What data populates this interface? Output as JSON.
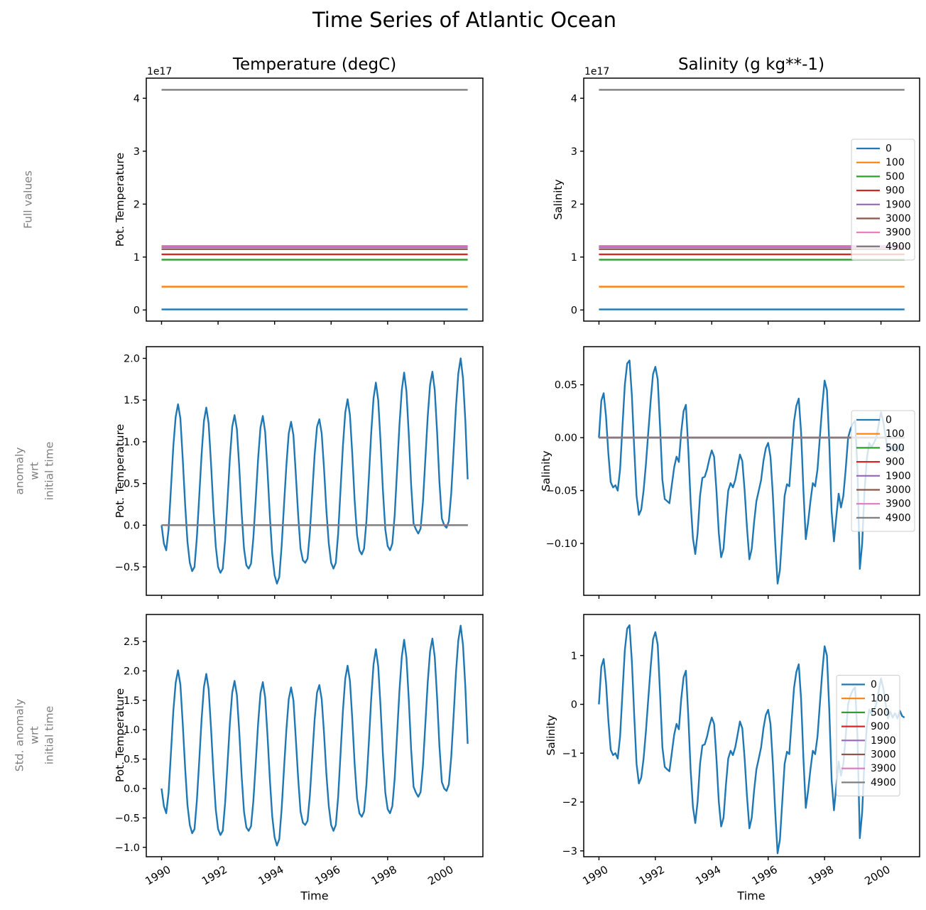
{
  "figure": {
    "suptitle": "Time Series of Atlantic Ocean",
    "col_titles": [
      "Temperature (degC)",
      "Salinity (g kg**-1)"
    ],
    "row_labels": [
      "Full values",
      "anomaly\nwrt\ninitial time",
      "Std. anomaly\nwrt\ninitial time"
    ],
    "row_label_color": "#7f7f7f",
    "legend": {
      "labels": [
        "0",
        "100",
        "500",
        "900",
        "1900",
        "3000",
        "3900",
        "4900"
      ],
      "colors": [
        "#1f77b4",
        "#ff7f0e",
        "#2ca02c",
        "#d62728",
        "#9467bd",
        "#8c564b",
        "#e377c2",
        "#7f7f7f"
      ],
      "position": "center right"
    }
  },
  "chart_data": [
    {
      "id": "temperature-full-values",
      "type": "line",
      "title": "Temperature (degC)",
      "ylabel": "Pot. Temperature",
      "offset_text": "1e17",
      "x": {
        "start": 1990.0,
        "step": 0.0833333,
        "n": 131
      },
      "xlim": [
        1989.46,
        2001.37
      ],
      "xticks": [
        1990,
        1992,
        1994,
        1996,
        1998,
        2000
      ],
      "xtick_labels": false,
      "ylim": [
        -0.21,
        4.38
      ],
      "yticks": [
        0,
        1,
        2,
        3,
        4
      ],
      "ytick_decimals": 0,
      "legend": false,
      "grid": false,
      "series": [
        {
          "name": "0",
          "color": "#1f77b4",
          "const": 0.01
        },
        {
          "name": "100",
          "color": "#ff7f0e",
          "const": 0.44
        },
        {
          "name": "500",
          "color": "#2ca02c",
          "const": 0.95
        },
        {
          "name": "900",
          "color": "#d62728",
          "const": 1.05
        },
        {
          "name": "1900",
          "color": "#9467bd",
          "const": 1.19
        },
        {
          "name": "3000",
          "color": "#8c564b",
          "const": 1.15
        },
        {
          "name": "3900",
          "color": "#e377c2",
          "const": 1.21
        },
        {
          "name": "4900",
          "color": "#7f7f7f",
          "const": 4.16
        }
      ]
    },
    {
      "id": "salinity-full-values",
      "type": "line",
      "title": "Salinity (g kg**-1)",
      "ylabel": "Salinity",
      "offset_text": "1e17",
      "x": {
        "start": 1990.0,
        "step": 0.0833333,
        "n": 131
      },
      "xlim": [
        1989.46,
        2001.37
      ],
      "xticks": [
        1990,
        1992,
        1994,
        1996,
        1998,
        2000
      ],
      "xtick_labels": false,
      "ylim": [
        -0.21,
        4.38
      ],
      "yticks": [
        0,
        1,
        2,
        3,
        4
      ],
      "ytick_decimals": 0,
      "legend": true,
      "legend_dx": 7,
      "grid": false,
      "series": [
        {
          "name": "0",
          "color": "#1f77b4",
          "const": 0.01
        },
        {
          "name": "100",
          "color": "#ff7f0e",
          "const": 0.44
        },
        {
          "name": "500",
          "color": "#2ca02c",
          "const": 0.95
        },
        {
          "name": "900",
          "color": "#d62728",
          "const": 1.05
        },
        {
          "name": "1900",
          "color": "#9467bd",
          "const": 1.19
        },
        {
          "name": "3000",
          "color": "#8c564b",
          "const": 1.15
        },
        {
          "name": "3900",
          "color": "#e377c2",
          "const": 1.21
        },
        {
          "name": "4900",
          "color": "#7f7f7f",
          "const": 4.16
        }
      ]
    },
    {
      "id": "temperature-anomaly",
      "type": "line",
      "ylabel": "Pot. Temperature",
      "x": {
        "start": 1990.0,
        "step": 0.0833333,
        "n": 131
      },
      "xlim": [
        1989.46,
        2001.37
      ],
      "xticks": [
        1990,
        1992,
        1994,
        1996,
        1998,
        2000
      ],
      "xtick_labels": false,
      "ylim": [
        -0.84,
        2.14
      ],
      "yticks": [
        -0.5,
        0.0,
        0.5,
        1.0,
        1.5,
        2.0
      ],
      "ytick_decimals": 1,
      "legend": false,
      "grid": false,
      "series": [
        {
          "name": "0",
          "color": "#1f77b4",
          "values": [
            0.0,
            -0.22,
            -0.3,
            -0.05,
            0.45,
            0.95,
            1.3,
            1.45,
            1.28,
            0.8,
            0.25,
            -0.2,
            -0.45,
            -0.55,
            -0.5,
            -0.15,
            0.35,
            0.85,
            1.25,
            1.41,
            1.22,
            0.75,
            0.2,
            -0.25,
            -0.5,
            -0.57,
            -0.52,
            -0.18,
            0.3,
            0.8,
            1.18,
            1.32,
            1.15,
            0.7,
            0.15,
            -0.28,
            -0.48,
            -0.52,
            -0.46,
            -0.15,
            0.32,
            0.8,
            1.17,
            1.31,
            1.12,
            0.65,
            0.1,
            -0.35,
            -0.6,
            -0.7,
            -0.62,
            -0.25,
            0.25,
            0.72,
            1.1,
            1.24,
            1.08,
            0.62,
            0.12,
            -0.28,
            -0.42,
            -0.45,
            -0.4,
            -0.08,
            0.38,
            0.85,
            1.18,
            1.27,
            1.1,
            0.68,
            0.18,
            -0.22,
            -0.45,
            -0.52,
            -0.45,
            -0.1,
            0.42,
            0.95,
            1.35,
            1.51,
            1.32,
            0.85,
            0.3,
            -0.12,
            -0.3,
            -0.35,
            -0.28,
            0.05,
            0.55,
            1.1,
            1.52,
            1.71,
            1.5,
            1.0,
            0.42,
            -0.05,
            -0.25,
            -0.3,
            -0.22,
            0.12,
            0.65,
            1.2,
            1.62,
            1.83,
            1.6,
            1.08,
            0.48,
            0.02,
            -0.05,
            -0.1,
            -0.04,
            0.28,
            0.78,
            1.3,
            1.68,
            1.84,
            1.62,
            1.12,
            0.52,
            0.08,
            0.0,
            -0.03,
            0.05,
            0.38,
            0.88,
            1.42,
            1.82,
            2.0,
            1.76,
            1.25,
            0.55
          ]
        },
        {
          "name": "100",
          "color": "#ff7f0e",
          "const": 0.0
        },
        {
          "name": "500",
          "color": "#2ca02c",
          "const": 0.0
        },
        {
          "name": "900",
          "color": "#d62728",
          "const": 0.0
        },
        {
          "name": "1900",
          "color": "#9467bd",
          "const": 0.0
        },
        {
          "name": "3000",
          "color": "#8c564b",
          "const": 0.0
        },
        {
          "name": "3900",
          "color": "#e377c2",
          "const": 0.0
        },
        {
          "name": "4900",
          "color": "#7f7f7f",
          "const": 0.0
        }
      ]
    },
    {
      "id": "salinity-anomaly",
      "type": "line",
      "ylabel": "Salinity",
      "x": {
        "start": 1990.0,
        "step": 0.0833333,
        "n": 131
      },
      "xlim": [
        1989.46,
        2001.37
      ],
      "xticks": [
        1990,
        1992,
        1994,
        1996,
        1998,
        2000
      ],
      "xtick_labels": false,
      "ylim": [
        -0.149,
        0.086
      ],
      "yticks": [
        -0.1,
        -0.05,
        0.0,
        0.05
      ],
      "ytick_decimals": 2,
      "legend": true,
      "legend_dx": 7,
      "grid": false,
      "series": [
        {
          "name": "0",
          "color": "#1f77b4",
          "values": [
            0.0,
            0.035,
            0.042,
            0.02,
            -0.015,
            -0.042,
            -0.047,
            -0.045,
            -0.05,
            -0.03,
            0.01,
            0.05,
            0.07,
            0.073,
            0.04,
            -0.01,
            -0.055,
            -0.073,
            -0.068,
            -0.05,
            -0.025,
            0.005,
            0.035,
            0.06,
            0.067,
            0.055,
            0.01,
            -0.04,
            -0.058,
            -0.06,
            -0.062,
            -0.045,
            -0.028,
            -0.018,
            -0.023,
            0.005,
            0.025,
            0.031,
            -0.01,
            -0.06,
            -0.095,
            -0.11,
            -0.09,
            -0.055,
            -0.038,
            -0.037,
            -0.03,
            -0.02,
            -0.012,
            -0.018,
            -0.05,
            -0.09,
            -0.113,
            -0.105,
            -0.075,
            -0.05,
            -0.043,
            -0.047,
            -0.04,
            -0.028,
            -0.016,
            -0.022,
            -0.05,
            -0.085,
            -0.115,
            -0.105,
            -0.08,
            -0.06,
            -0.05,
            -0.04,
            -0.022,
            -0.01,
            -0.005,
            -0.018,
            -0.055,
            -0.1,
            -0.138,
            -0.125,
            -0.09,
            -0.055,
            -0.044,
            -0.046,
            -0.015,
            0.015,
            0.03,
            0.037,
            0.005,
            -0.05,
            -0.096,
            -0.08,
            -0.06,
            -0.043,
            -0.046,
            -0.03,
            0.0,
            0.03,
            0.054,
            0.045,
            -0.005,
            -0.07,
            -0.098,
            -0.075,
            -0.053,
            -0.066,
            -0.055,
            -0.03,
            0.0,
            0.008,
            0.013,
            0.016,
            -0.03,
            -0.124,
            -0.1,
            -0.051,
            -0.02,
            -0.005,
            -0.009,
            -0.005,
            0.0,
            0.012,
            0.024,
            0.015,
            0.0,
            -0.013,
            -0.007,
            -0.012,
            -0.008,
            -0.013,
            -0.006,
            -0.011,
            -0.012
          ]
        },
        {
          "name": "100",
          "color": "#ff7f0e",
          "const": 0.0
        },
        {
          "name": "500",
          "color": "#2ca02c",
          "const": 0.0
        },
        {
          "name": "900",
          "color": "#d62728",
          "const": 0.0
        },
        {
          "name": "1900",
          "color": "#9467bd",
          "const": 0.0
        },
        {
          "name": "3000",
          "color": "#8c564b",
          "const": 0.0
        },
        {
          "name": "3900",
          "color": "#e377c2",
          "const": 0.0
        },
        {
          "name": "4900",
          "color": "#7f7f7f",
          "const": 0.0
        }
      ]
    },
    {
      "id": "temperature-std-anomaly",
      "type": "line",
      "ylabel": "Pot. Temperature",
      "xlabel": "Time",
      "x": {
        "start": 1990.0,
        "step": 0.0833333,
        "n": 131
      },
      "xlim": [
        1989.46,
        2001.37
      ],
      "xticks": [
        1990,
        1992,
        1994,
        1996,
        1998,
        2000
      ],
      "xtick_labels": true,
      "ylim": [
        -1.16,
        2.96
      ],
      "yticks": [
        -1.0,
        -0.5,
        0.0,
        0.5,
        1.0,
        1.5,
        2.0,
        2.5
      ],
      "ytick_decimals": 1,
      "legend": false,
      "grid": false,
      "series": [
        {
          "name": "0",
          "color": "#1f77b4",
          "values": [
            0.0,
            -0.3,
            -0.42,
            -0.07,
            0.62,
            1.32,
            1.8,
            2.01,
            1.77,
            1.11,
            0.35,
            -0.28,
            -0.62,
            -0.76,
            -0.69,
            -0.21,
            0.48,
            1.18,
            1.73,
            1.95,
            1.69,
            1.04,
            0.28,
            -0.35,
            -0.69,
            -0.79,
            -0.72,
            -0.25,
            0.42,
            1.11,
            1.63,
            1.83,
            1.59,
            0.97,
            0.21,
            -0.39,
            -0.66,
            -0.72,
            -0.64,
            -0.21,
            0.44,
            1.11,
            1.62,
            1.81,
            1.55,
            0.9,
            0.14,
            -0.48,
            -0.83,
            -0.97,
            -0.86,
            -0.35,
            0.35,
            1.0,
            1.52,
            1.72,
            1.5,
            0.86,
            0.17,
            -0.39,
            -0.58,
            -0.62,
            -0.55,
            -0.11,
            0.53,
            1.18,
            1.63,
            1.76,
            1.52,
            0.94,
            0.25,
            -0.3,
            -0.62,
            -0.72,
            -0.62,
            -0.14,
            0.58,
            1.32,
            1.87,
            2.09,
            1.83,
            1.18,
            0.42,
            -0.17,
            -0.42,
            -0.48,
            -0.39,
            0.07,
            0.76,
            1.52,
            2.11,
            2.37,
            2.08,
            1.39,
            0.58,
            -0.07,
            -0.35,
            -0.42,
            -0.3,
            0.17,
            0.9,
            1.66,
            2.24,
            2.53,
            2.22,
            1.5,
            0.66,
            0.03,
            -0.07,
            -0.14,
            -0.06,
            0.39,
            1.08,
            1.8,
            2.33,
            2.55,
            2.24,
            1.55,
            0.72,
            0.11,
            0.0,
            -0.04,
            0.07,
            0.53,
            1.22,
            1.97,
            2.52,
            2.77,
            2.44,
            1.73,
            0.76
          ]
        }
      ]
    },
    {
      "id": "salinity-std-anomaly",
      "type": "line",
      "ylabel": "Salinity",
      "xlabel": "Time",
      "x": {
        "start": 1990.0,
        "step": 0.0833333,
        "n": 131
      },
      "xlim": [
        1989.46,
        2001.37
      ],
      "xticks": [
        1990,
        1992,
        1994,
        1996,
        1998,
        2000
      ],
      "xtick_labels": true,
      "ylim": [
        -3.12,
        1.84
      ],
      "yticks": [
        -3,
        -2,
        -1,
        0,
        1
      ],
      "ytick_decimals": 0,
      "legend": true,
      "legend_dx": 28,
      "grid": false,
      "series": [
        {
          "name": "0",
          "color": "#1f77b4",
          "values": [
            0.0,
            0.77,
            0.93,
            0.44,
            -0.33,
            -0.93,
            -1.04,
            -1.0,
            -1.11,
            -0.66,
            0.22,
            1.11,
            1.55,
            1.62,
            0.88,
            -0.22,
            -1.22,
            -1.62,
            -1.5,
            -1.11,
            -0.55,
            0.11,
            0.77,
            1.33,
            1.48,
            1.22,
            0.22,
            -0.88,
            -1.28,
            -1.33,
            -1.37,
            -1.0,
            -0.62,
            -0.4,
            -0.51,
            0.11,
            0.55,
            0.69,
            -0.22,
            -1.33,
            -2.1,
            -2.43,
            -1.99,
            -1.22,
            -0.84,
            -0.82,
            -0.66,
            -0.44,
            -0.27,
            -0.4,
            -1.11,
            -1.99,
            -2.5,
            -2.32,
            -1.66,
            -1.11,
            -0.95,
            -1.04,
            -0.88,
            -0.62,
            -0.35,
            -0.49,
            -1.11,
            -1.88,
            -2.54,
            -2.32,
            -1.77,
            -1.33,
            -1.11,
            -0.88,
            -0.49,
            -0.22,
            -0.11,
            -0.4,
            -1.22,
            -2.21,
            -3.05,
            -2.77,
            -1.99,
            -1.22,
            -0.97,
            -1.02,
            -0.33,
            0.33,
            0.66,
            0.82,
            0.11,
            -1.11,
            -2.12,
            -1.77,
            -1.33,
            -0.95,
            -1.02,
            -0.66,
            0.0,
            0.66,
            1.19,
            1.0,
            -0.11,
            -1.55,
            -2.17,
            -1.66,
            -1.17,
            -1.46,
            -1.22,
            -0.66,
            0.0,
            0.18,
            0.29,
            0.35,
            -0.66,
            -2.74,
            -2.21,
            -1.13,
            -0.44,
            -0.11,
            -0.2,
            -0.11,
            0.0,
            0.27,
            0.53,
            0.33,
            0.0,
            -0.29,
            -0.15,
            -0.27,
            -0.18,
            -0.29,
            -0.13,
            -0.24,
            -0.27
          ]
        }
      ]
    }
  ]
}
